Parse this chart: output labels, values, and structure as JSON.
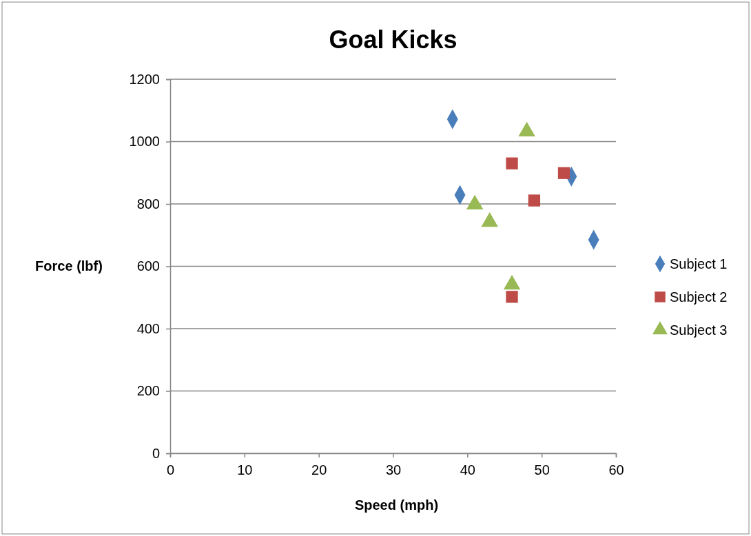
{
  "chart_data": {
    "type": "scatter",
    "title": "Goal Kicks",
    "xlabel": "Speed (mph)",
    "ylabel": "Force (lbf)",
    "xlim": [
      0,
      60
    ],
    "xticks": [
      0,
      10,
      20,
      30,
      40,
      50,
      60
    ],
    "ylim": [
      0,
      1200
    ],
    "yticks": [
      0,
      200,
      400,
      600,
      800,
      1000,
      1200
    ],
    "grid": "y",
    "legend": "right",
    "series": [
      {
        "name": "Subject 1",
        "color": "#4a7ebb",
        "marker": "diamond",
        "x": [
          38,
          39,
          54,
          57
        ],
        "values": [
          1072,
          829,
          888,
          685
        ]
      },
      {
        "name": "Subject 2",
        "color": "#be4b48",
        "marker": "square",
        "x": [
          46,
          49,
          53,
          46
        ],
        "values": [
          930,
          811,
          899,
          502
        ]
      },
      {
        "name": "Subject 3",
        "color": "#98b954",
        "marker": "triangle",
        "x": [
          48,
          41,
          43,
          46
        ],
        "values": [
          1032,
          798,
          742,
          541
        ]
      }
    ]
  }
}
